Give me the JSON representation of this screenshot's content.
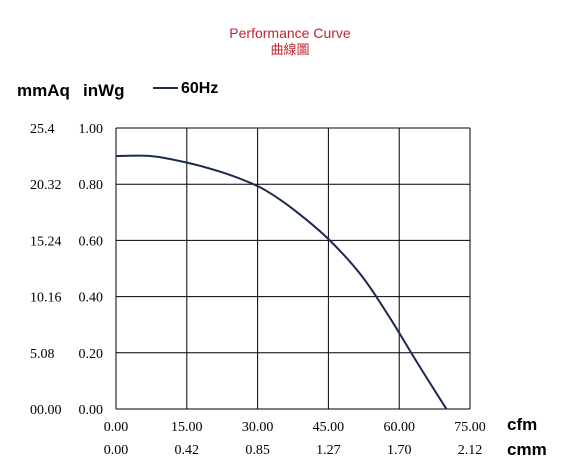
{
  "chart_data": {
    "type": "line",
    "title": "Performance Curve",
    "subtitle": "曲線圖",
    "title_color": "#c0272d",
    "line_color": "#1b2a4e",
    "ylabel_primary": "mmAq",
    "ylabel_secondary": "inWg",
    "xlabel_primary": "cfm",
    "xlabel_secondary": "cmm",
    "legend": "60Hz",
    "legend_position": "top-left",
    "grid": true,
    "xlim": [
      0,
      75
    ],
    "ylim": [
      0,
      1.0
    ],
    "x_ticks": [
      "0.00",
      "15.00",
      "30.00",
      "45.00",
      "60.00",
      "75.00"
    ],
    "x2_ticks": [
      "0.00",
      "0.42",
      "0.85",
      "1.27",
      "1.70",
      "2.12"
    ],
    "y_ticks": [
      "0.00",
      "0.20",
      "0.40",
      "0.60",
      "0.80",
      "1.00"
    ],
    "y2_ticks": [
      "00.00",
      "5.08",
      "10.16",
      "15.24",
      "20.32",
      "25.4"
    ],
    "series": [
      {
        "name": "60Hz",
        "x": [
          0,
          7.5,
          15,
          22,
          28,
          32,
          38,
          45,
          52,
          58,
          64,
          70
        ],
        "y": [
          0.9,
          0.9,
          0.877,
          0.845,
          0.808,
          0.775,
          0.705,
          0.605,
          0.475,
          0.325,
          0.16,
          0.0
        ]
      }
    ]
  }
}
